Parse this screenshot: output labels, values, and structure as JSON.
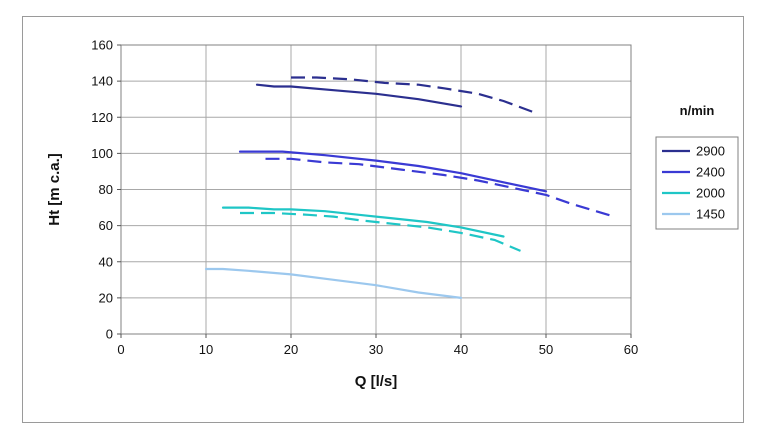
{
  "chart_data": {
    "type": "line",
    "title": "",
    "xlabel": "Q [l/s]",
    "ylabel": "Ht [m c.a.]",
    "xlim": [
      0,
      60
    ],
    "ylim": [
      0,
      160
    ],
    "x_ticks": [
      0,
      10,
      20,
      30,
      40,
      50,
      60
    ],
    "y_ticks": [
      0,
      20,
      40,
      60,
      80,
      100,
      120,
      140,
      160
    ],
    "grid": true,
    "legend_title": "n/min",
    "legend_position": "right",
    "series": [
      {
        "name": "2900",
        "color": "#2b2f8f",
        "solid": {
          "x": [
            16,
            18,
            20,
            25,
            30,
            35,
            40
          ],
          "y": [
            138,
            137,
            137,
            135,
            133,
            130,
            126
          ]
        },
        "dashed": {
          "x": [
            20,
            23,
            27,
            31,
            35,
            38,
            42,
            45,
            49
          ],
          "y": [
            142,
            142,
            141,
            139,
            138,
            136,
            133,
            129,
            122
          ]
        }
      },
      {
        "name": "2400",
        "color": "#3a3ad4",
        "solid": {
          "x": [
            14,
            19,
            24,
            30,
            35,
            40,
            45,
            50
          ],
          "y": [
            101,
            101,
            99,
            96,
            93,
            89,
            84,
            79
          ]
        },
        "dashed": {
          "x": [
            17,
            20,
            24,
            28,
            33,
            38,
            42,
            47,
            50,
            53,
            58
          ],
          "y": [
            97,
            97,
            95,
            94,
            91,
            88,
            85,
            80,
            77,
            72,
            65
          ]
        }
      },
      {
        "name": "2000",
        "color": "#1fc6c6",
        "solid": {
          "x": [
            12,
            15,
            18,
            20,
            24,
            28,
            32,
            36,
            40,
            45
          ],
          "y": [
            70,
            70,
            69,
            69,
            68,
            66,
            64,
            62,
            59,
            54
          ]
        },
        "dashed": {
          "x": [
            14,
            18,
            22,
            25,
            28,
            32,
            36,
            40,
            44,
            47
          ],
          "y": [
            67,
            67,
            66,
            65,
            63,
            61,
            59,
            56,
            52,
            46
          ]
        }
      },
      {
        "name": "1450",
        "color": "#9cc8ee",
        "solid": {
          "x": [
            10,
            12,
            15,
            20,
            25,
            30,
            35,
            40
          ],
          "y": [
            36,
            36,
            35,
            33,
            30,
            27,
            23,
            20
          ]
        }
      }
    ]
  }
}
